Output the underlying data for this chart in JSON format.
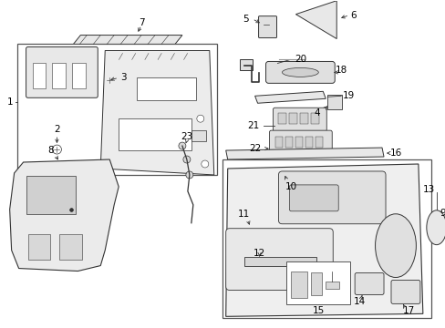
{
  "background_color": "#ffffff",
  "fig_width": 4.89,
  "fig_height": 3.6,
  "dpi": 100,
  "line_color": "#333333",
  "box_edge_color": "#555555"
}
